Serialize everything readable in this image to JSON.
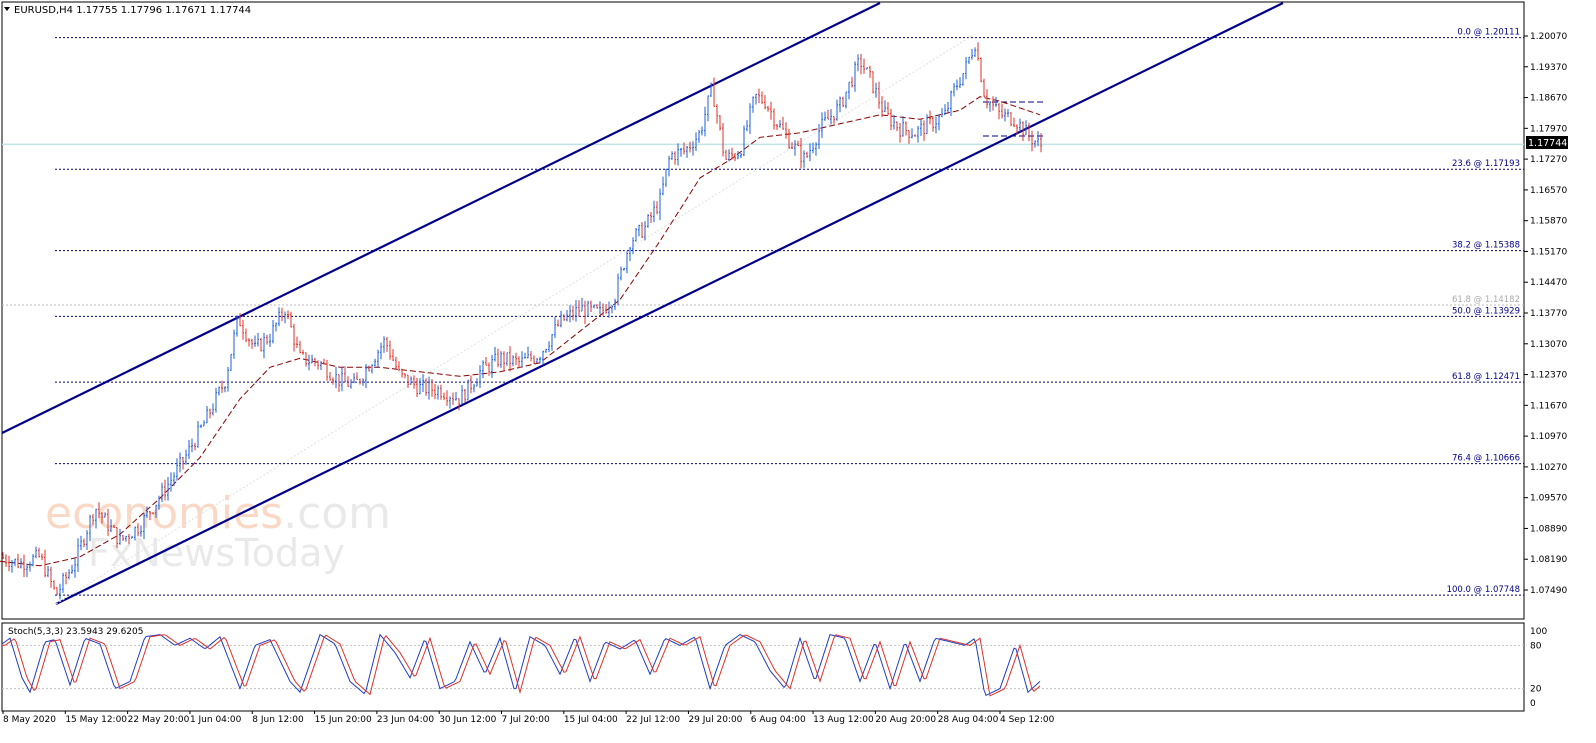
{
  "header": {
    "symbol": "EURUSD,H4",
    "ohlc": "1.17755 1.17796 1.17671 1.17744"
  },
  "current_price": "1.17744",
  "watermark": {
    "line1_colored": "economies",
    "line1_rest": ".com",
    "line2": "FxNewsToday"
  },
  "chart_data": {
    "type": "line",
    "price_axis_labels": [
      "1.20070",
      "1.19370",
      "1.18670",
      "1.17970",
      "1.17270",
      "1.16570",
      "1.15870",
      "1.15170",
      "1.14470",
      "1.13770",
      "1.13070",
      "1.12370",
      "1.11670",
      "1.10970",
      "1.10270",
      "1.09570",
      "1.08890",
      "1.08190",
      "1.07490"
    ],
    "time_axis_labels": [
      "8 May 2020",
      "15 May 12:00",
      "22 May 20:00",
      "1 Jun 04:00",
      "8 Jun 12:00",
      "15 Jun 20:00",
      "23 Jun 04:00",
      "30 Jun 12:00",
      "7 Jul 20:00",
      "15 Jul 04:00",
      "22 Jul 12:00",
      "29 Jul 20:00",
      "6 Aug 04:00",
      "13 Aug 12:00",
      "20 Aug 20:00",
      "28 Aug 04:00",
      "4 Sep 12:00"
    ],
    "ylim": [
      1.0722,
      1.209
    ],
    "fib_levels": [
      {
        "label": "0.0 @ 1.20111",
        "price": 1.20111
      },
      {
        "label": "23.6 @ 1.17193",
        "price": 1.17193
      },
      {
        "label": "38.2 @ 1.15388",
        "price": 1.15388
      },
      {
        "label": "50.0 @ 1.13929",
        "price": 1.13929
      },
      {
        "label": "61.8 @ 1.12471",
        "price": 1.12471
      },
      {
        "label": "76.4 @ 1.10666",
        "price": 1.10666
      },
      {
        "label": "100.0 @ 1.07748",
        "price": 1.07748
      }
    ],
    "ghost_fib": {
      "label": "61.8 @ 1.14182",
      "price": 1.14182
    },
    "price_path": [
      [
        0,
        1.086
      ],
      [
        20,
        1.0845
      ],
      [
        40,
        1.086
      ],
      [
        56,
        1.0775
      ],
      [
        75,
        1.085
      ],
      [
        95,
        1.097
      ],
      [
        120,
        1.0895
      ],
      [
        140,
        1.093
      ],
      [
        165,
        1.101
      ],
      [
        185,
        1.108
      ],
      [
        205,
        1.116
      ],
      [
        225,
        1.125
      ],
      [
        238,
        1.139
      ],
      [
        255,
        1.132
      ],
      [
        270,
        1.135
      ],
      [
        285,
        1.141
      ],
      [
        300,
        1.13
      ],
      [
        320,
        1.129
      ],
      [
        340,
        1.125
      ],
      [
        355,
        1.124
      ],
      [
        370,
        1.129
      ],
      [
        385,
        1.134
      ],
      [
        400,
        1.126
      ],
      [
        420,
        1.1235
      ],
      [
        440,
        1.123
      ],
      [
        460,
        1.121
      ],
      [
        480,
        1.127
      ],
      [
        500,
        1.13
      ],
      [
        520,
        1.129
      ],
      [
        540,
        1.131
      ],
      [
        560,
        1.138
      ],
      [
        580,
        1.141
      ],
      [
        600,
        1.14
      ],
      [
        615,
        1.144
      ],
      [
        630,
        1.156
      ],
      [
        645,
        1.159
      ],
      [
        660,
        1.165
      ],
      [
        670,
        1.175
      ],
      [
        685,
        1.176
      ],
      [
        700,
        1.18
      ],
      [
        712,
        1.19
      ],
      [
        725,
        1.174
      ],
      [
        740,
        1.176
      ],
      [
        755,
        1.188
      ],
      [
        765,
        1.187
      ],
      [
        775,
        1.183
      ],
      [
        790,
        1.178
      ],
      [
        805,
        1.174
      ],
      [
        820,
        1.181
      ],
      [
        840,
        1.186
      ],
      [
        860,
        1.196
      ],
      [
        870,
        1.192
      ],
      [
        885,
        1.184
      ],
      [
        900,
        1.181
      ],
      [
        915,
        1.18
      ],
      [
        930,
        1.182
      ],
      [
        945,
        1.184
      ],
      [
        955,
        1.19
      ],
      [
        965,
        1.194
      ],
      [
        975,
        1.2
      ],
      [
        985,
        1.188
      ],
      [
        1000,
        1.184
      ],
      [
        1015,
        1.183
      ],
      [
        1030,
        1.179
      ],
      [
        1042,
        1.177
      ]
    ],
    "ma_path": [
      [
        0,
        1.085
      ],
      [
        40,
        1.084
      ],
      [
        80,
        1.086
      ],
      [
        120,
        1.091
      ],
      [
        160,
        1.099
      ],
      [
        200,
        1.108
      ],
      [
        240,
        1.121
      ],
      [
        270,
        1.128
      ],
      [
        300,
        1.13
      ],
      [
        340,
        1.128
      ],
      [
        380,
        1.128
      ],
      [
        420,
        1.127
      ],
      [
        460,
        1.126
      ],
      [
        500,
        1.127
      ],
      [
        540,
        1.129
      ],
      [
        580,
        1.136
      ],
      [
        620,
        1.143
      ],
      [
        660,
        1.156
      ],
      [
        700,
        1.17
      ],
      [
        730,
        1.174
      ],
      [
        760,
        1.179
      ],
      [
        800,
        1.18
      ],
      [
        840,
        1.182
      ],
      [
        880,
        1.184
      ],
      [
        920,
        1.183
      ],
      [
        960,
        1.185
      ],
      [
        980,
        1.188
      ],
      [
        1000,
        1.187
      ],
      [
        1040,
        1.184
      ]
    ],
    "stoch": {
      "label": "Stoch(5,3,3) 23.5943 29.6205",
      "levels": [
        "100",
        "80",
        "20",
        "0"
      ],
      "k": [
        [
          0,
          80
        ],
        [
          10,
          90
        ],
        [
          22,
          35
        ],
        [
          30,
          15
        ],
        [
          45,
          85
        ],
        [
          55,
          88
        ],
        [
          70,
          25
        ],
        [
          85,
          90
        ],
        [
          100,
          82
        ],
        [
          115,
          20
        ],
        [
          130,
          30
        ],
        [
          145,
          92
        ],
        [
          160,
          95
        ],
        [
          175,
          80
        ],
        [
          190,
          90
        ],
        [
          205,
          75
        ],
        [
          220,
          92
        ],
        [
          240,
          20
        ],
        [
          255,
          80
        ],
        [
          270,
          88
        ],
        [
          290,
          30
        ],
        [
          300,
          15
        ],
        [
          320,
          95
        ],
        [
          335,
          82
        ],
        [
          350,
          30
        ],
        [
          365,
          12
        ],
        [
          380,
          95
        ],
        [
          395,
          70
        ],
        [
          410,
          35
        ],
        [
          425,
          90
        ],
        [
          440,
          20
        ],
        [
          455,
          30
        ],
        [
          470,
          85
        ],
        [
          485,
          40
        ],
        [
          500,
          90
        ],
        [
          515,
          15
        ],
        [
          530,
          92
        ],
        [
          545,
          80
        ],
        [
          560,
          40
        ],
        [
          575,
          92
        ],
        [
          590,
          30
        ],
        [
          605,
          85
        ],
        [
          620,
          75
        ],
        [
          635,
          88
        ],
        [
          650,
          40
        ],
        [
          665,
          90
        ],
        [
          680,
          80
        ],
        [
          695,
          92
        ],
        [
          710,
          20
        ],
        [
          725,
          80
        ],
        [
          740,
          95
        ],
        [
          755,
          85
        ],
        [
          770,
          45
        ],
        [
          785,
          20
        ],
        [
          800,
          90
        ],
        [
          815,
          30
        ],
        [
          830,
          95
        ],
        [
          845,
          90
        ],
        [
          860,
          30
        ],
        [
          875,
          85
        ],
        [
          890,
          20
        ],
        [
          905,
          85
        ],
        [
          920,
          30
        ],
        [
          935,
          90
        ],
        [
          950,
          85
        ],
        [
          965,
          80
        ],
        [
          975,
          90
        ],
        [
          985,
          10
        ],
        [
          1000,
          20
        ],
        [
          1015,
          80
        ],
        [
          1028,
          15
        ],
        [
          1040,
          30
        ]
      ]
    }
  },
  "colors": {
    "channel": "#00008b",
    "grid": "#00008b",
    "bull": "#1e5fd6",
    "bear": "#e0302a",
    "ma": "#8b0000",
    "price_line": "#bfe3e8"
  }
}
